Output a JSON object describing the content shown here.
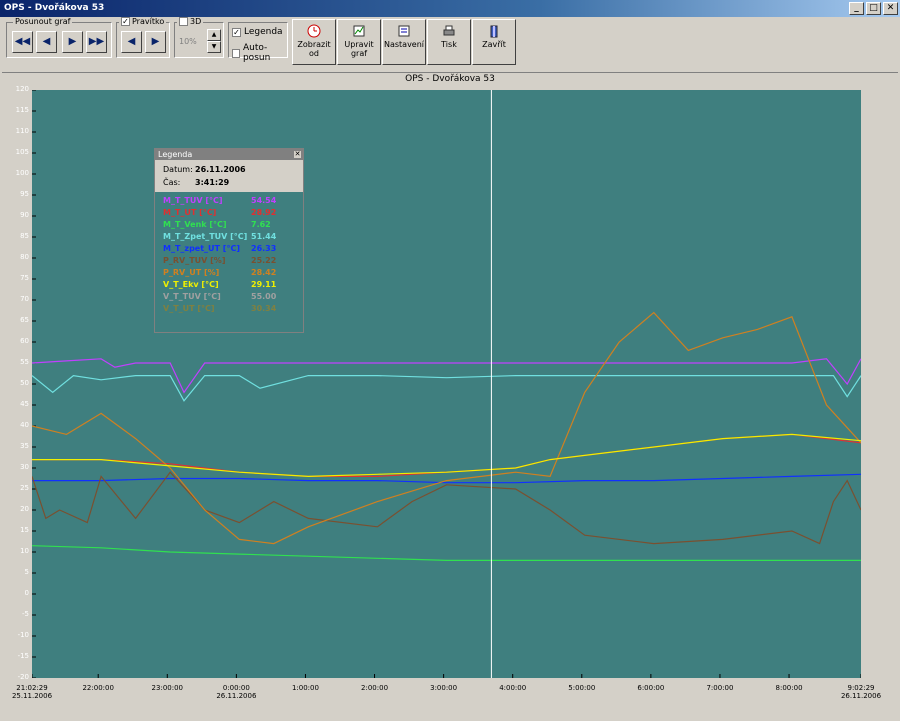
{
  "window": {
    "title": "OPS - Dvořákova 53",
    "minimize": "_",
    "maximize": "□",
    "close": "✕"
  },
  "toolbar": {
    "posunout_label": "Posunout graf",
    "pravitko_label": "Pravítko",
    "pravitko_checked": "✓",
    "d3_label": "3D",
    "zoom_value": "10%",
    "legenda_label": "Legenda",
    "legenda_checked": "✓",
    "autoposun_label": "Auto-posun",
    "zobrazit_label": "Zobrazit od",
    "upravit_label": "Upravit graf",
    "nastaveni_label": "Nastavení",
    "tisk_label": "Tisk",
    "zavrit_label": "Zavřít"
  },
  "chart_data": {
    "type": "line",
    "title": "OPS - Dvořákova 53",
    "y_ticks": [
      "120",
      "115",
      "110",
      "105",
      "100",
      "95",
      "90",
      "85",
      "80",
      "75",
      "70",
      "65",
      "60",
      "55",
      "50",
      "45",
      "40",
      "35",
      "30",
      "25",
      "20",
      "15",
      "10",
      "5",
      "0",
      "-5",
      "-10",
      "-15",
      "-20"
    ],
    "x_ticks": [
      {
        "time": "21:02:29",
        "date": "25.11.2006"
      },
      {
        "time": "22:00:00",
        "date": ""
      },
      {
        "time": "23:00:00",
        "date": ""
      },
      {
        "time": "0:00:00",
        "date": "26.11.2006"
      },
      {
        "time": "1:00:00",
        "date": ""
      },
      {
        "time": "2:00:00",
        "date": ""
      },
      {
        "time": "3:00:00",
        "date": ""
      },
      {
        "time": "4:00:00",
        "date": ""
      },
      {
        "time": "5:00:00",
        "date": ""
      },
      {
        "time": "6:00:00",
        "date": ""
      },
      {
        "time": "7:00:00",
        "date": ""
      },
      {
        "time": "8:00:00",
        "date": ""
      },
      {
        "time": "9:02:29",
        "date": "26.11.2006"
      }
    ],
    "ylim": [
      -20,
      120
    ],
    "x_hours": [
      0,
      12
    ],
    "cursor_hours": 6.65,
    "series": [
      {
        "name": "M_T_TUV [°C]",
        "color": "#c040ff",
        "x": [
          0,
          0.5,
          1,
          1.2,
          1.5,
          2,
          2.2,
          2.5,
          3,
          3.5,
          4,
          5,
          6,
          7,
          8,
          9,
          10,
          11,
          11.5,
          11.8,
          12
        ],
        "y": [
          55,
          55.5,
          56,
          54,
          55,
          55,
          48,
          55,
          55,
          55,
          55,
          55,
          55,
          55,
          55,
          55,
          55,
          55,
          56,
          50,
          56
        ]
      },
      {
        "name": "M_T_UT [°C]",
        "color": "#e03030",
        "x": [
          0,
          1,
          2,
          3,
          4,
          5,
          6,
          7,
          7.5,
          8,
          9,
          10,
          11,
          12
        ],
        "y": [
          32,
          32,
          31,
          29,
          28,
          28,
          29,
          30,
          32,
          33,
          35,
          37,
          38,
          36
        ]
      },
      {
        "name": "M_T_Venk [°C]",
        "color": "#30e050",
        "x": [
          0,
          1,
          2,
          3,
          4,
          5,
          6,
          7,
          8,
          9,
          10,
          11,
          12
        ],
        "y": [
          11.5,
          11,
          10,
          9.5,
          9,
          8.5,
          8,
          8,
          8,
          8,
          8,
          8,
          8
        ]
      },
      {
        "name": "M_T_Zpet_TUV [°C]",
        "color": "#70e0e0",
        "x": [
          0,
          0.3,
          0.6,
          1,
          1.5,
          2,
          2.2,
          2.5,
          3,
          3.3,
          4,
          5,
          6,
          7,
          8,
          9,
          10,
          11,
          11.6,
          11.8,
          12
        ],
        "y": [
          52,
          48,
          52,
          51,
          52,
          52,
          46,
          52,
          52,
          49,
          52,
          52,
          51.5,
          52,
          52,
          52,
          52,
          52,
          52,
          47,
          52
        ]
      },
      {
        "name": "M_T_zpet_UT [°C]",
        "color": "#1030ff",
        "x": [
          0,
          1,
          2,
          3,
          4,
          5,
          6,
          7,
          8,
          9,
          10,
          11,
          12
        ],
        "y": [
          27,
          27,
          27.5,
          27.5,
          27,
          27,
          26.5,
          26.5,
          27,
          27,
          27.5,
          28,
          28.5
        ]
      },
      {
        "name": "P_RV_TUV [%]",
        "color": "#7a5030",
        "x": [
          0,
          0.2,
          0.4,
          0.8,
          1,
          1.5,
          2,
          2.5,
          3,
          3.5,
          4,
          5,
          5.5,
          6,
          7,
          7.5,
          8,
          9,
          10,
          11,
          11.4,
          11.6,
          11.8,
          12
        ],
        "y": [
          28,
          18,
          20,
          17,
          28,
          18,
          29,
          20,
          17,
          22,
          18,
          16,
          22,
          26,
          25,
          20,
          14,
          12,
          13,
          15,
          12,
          22,
          27,
          20
        ]
      },
      {
        "name": "P_RV_UT [%]",
        "color": "#d08020",
        "x": [
          0,
          0.5,
          1,
          1.5,
          2,
          2.5,
          3,
          3.5,
          4,
          5,
          6,
          7,
          7.5,
          8,
          8.5,
          9,
          9.5,
          10,
          10.5,
          11,
          11.5,
          12
        ],
        "y": [
          40,
          38,
          43,
          37,
          30,
          20,
          13,
          12,
          16,
          22,
          27,
          29,
          28,
          48,
          60,
          67,
          58,
          61,
          63,
          66,
          45,
          36
        ]
      },
      {
        "name": "V_T_Ekv [°C]",
        "color": "#f0f000",
        "x": [
          0,
          1,
          2,
          3,
          4,
          5,
          6,
          7,
          7.5,
          8,
          9,
          10,
          11,
          12
        ],
        "y": [
          32,
          32,
          30.5,
          29,
          28,
          28.5,
          29,
          30,
          32,
          33,
          35,
          37,
          38,
          36.5
        ]
      },
      {
        "name": "V_T_TUV [°C]",
        "color": "#a0a0a0",
        "x": [],
        "y": []
      },
      {
        "name": "V_T_UT [°C]",
        "color": "#808040",
        "x": [],
        "y": []
      }
    ]
  },
  "legend": {
    "title": "Legenda",
    "close": "✕",
    "datum_label": "Datum:",
    "datum_value": "26.11.2006",
    "cas_label": "Čas:",
    "cas_value": "3:41:29",
    "rows": [
      {
        "name": "M_T_TUV [°C]",
        "value": "54.54",
        "color": "#c040ff"
      },
      {
        "name": "M_T_UT [°C]",
        "value": "28.92",
        "color": "#e03030"
      },
      {
        "name": "M_T_Venk [°C]",
        "value": "7.62",
        "color": "#30e050"
      },
      {
        "name": "M_T_Zpet_TUV [°C]",
        "value": "51.44",
        "color": "#70e0e0"
      },
      {
        "name": "M_T_zpet_UT [°C]",
        "value": "26.33",
        "color": "#1030ff"
      },
      {
        "name": "P_RV_TUV [%]",
        "value": "25.22",
        "color": "#7a5030"
      },
      {
        "name": "P_RV_UT [%]",
        "value": "28.42",
        "color": "#d08020"
      },
      {
        "name": "V_T_Ekv [°C]",
        "value": "29.11",
        "color": "#f0f000"
      },
      {
        "name": "V_T_TUV [°C]",
        "value": "55.00",
        "color": "#a0a0a0"
      },
      {
        "name": "V_T_UT [°C]",
        "value": "30.34",
        "color": "#808040"
      }
    ]
  }
}
